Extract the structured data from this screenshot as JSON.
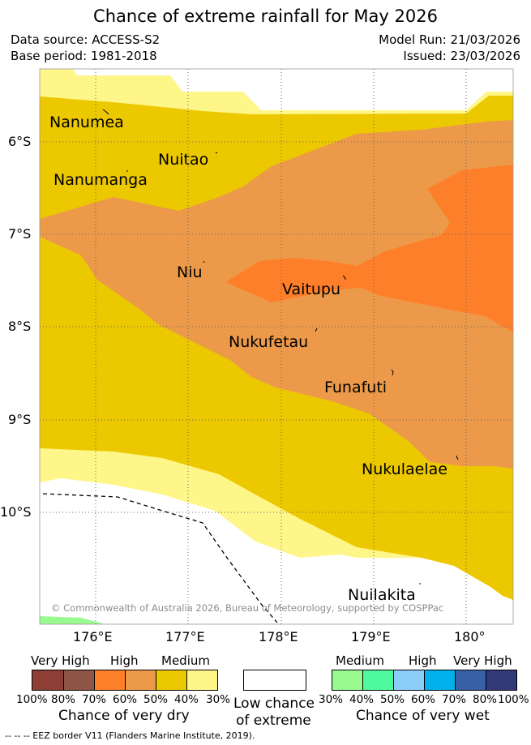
{
  "title": "Chance of extreme rainfall for May 2026",
  "meta": {
    "data_source": "Data source: ACCESS-S2",
    "base_period": "Base period: 1981-2018",
    "model_run": "Model Run: 21/03/2026",
    "issued": "Issued: 23/03/2026"
  },
  "map": {
    "lat_ticks": [
      "6°S",
      "7°S",
      "8°S",
      "9°S",
      "10°S"
    ],
    "lon_ticks": [
      "176°E",
      "177°E",
      "178°E",
      "179°E",
      "180°"
    ],
    "places": {
      "nanumea": "Nanumea",
      "nuitao": "Nuitao",
      "nanumanga": "Nanumanga",
      "niu": "Niu",
      "vaitupu": "Vaitupu",
      "nukufetau": "Nukufetau",
      "funafuti": "Funafuti",
      "nukulaelae": "Nukulaelae",
      "nuilakita": "Nuilakita"
    },
    "copyright": "© Commonwealth of Australia 2026, Bureau of Meteorology, supported by COSPPac"
  },
  "legend": {
    "dry": {
      "headers": [
        "Very High",
        "High",
        "Medium"
      ],
      "colors": [
        "#8d3f36",
        "#8f5545",
        "#fe7f2a",
        "#ec9a4a",
        "#ecc800",
        "#fff68a"
      ],
      "pct": [
        "100%",
        "80%",
        "70%",
        "60%",
        "50%",
        "40%",
        "30%"
      ],
      "caption": "Chance of very dry"
    },
    "low": {
      "caption_line1": "Low chance",
      "caption_line2": "of extreme"
    },
    "wet": {
      "headers": [
        "Medium",
        "High",
        "Very High"
      ],
      "colors": [
        "#98fa8f",
        "#4ffa9f",
        "#8dcdfc",
        "#01b1ec",
        "#3860a6",
        "#333a78"
      ],
      "pct": [
        "30%",
        "40%",
        "50%",
        "60%",
        "70%",
        "80%",
        "100%"
      ],
      "caption": "Chance of very wet"
    }
  },
  "footnote": "--  --  -- EEZ border V11 (Flanders Marine Institute, 2019).",
  "colors": {
    "pale_yellow": "#fff68a",
    "yellow": "#ecc800",
    "light_orange": "#ec9a4a",
    "orange": "#fe7f2a",
    "green": "#98fa8f"
  }
}
